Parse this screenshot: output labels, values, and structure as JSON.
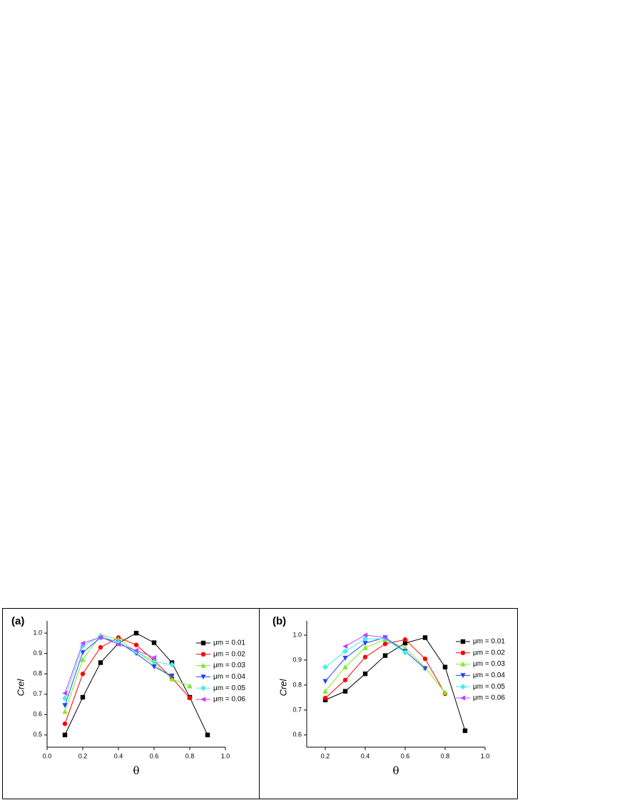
{
  "chart_data": [
    {
      "type": "line",
      "panel_label": "(a)",
      "xlabel": "θ",
      "ylabel": "Crel",
      "xlim": [
        0,
        1
      ],
      "ylim": [
        0.44,
        1.06
      ],
      "xticks": [
        {
          "value": 0,
          "label": "0.0"
        },
        0.2,
        0.4,
        0.6,
        0.8,
        {
          "value": 1,
          "label": "1.0"
        }
      ],
      "yticks": [
        0.5,
        0.6,
        0.7,
        0.8,
        0.9,
        {
          "value": 1,
          "label": "1.0"
        }
      ],
      "series": [
        {
          "name": "μm = 0.01",
          "color": "#000000",
          "marker": "square",
          "x": [
            0.1,
            0.2,
            0.3,
            0.4,
            0.5,
            0.6,
            0.7,
            0.8,
            0.9
          ],
          "values": [
            0.5,
            0.685,
            0.855,
            0.95,
            1.0,
            0.953,
            0.855,
            0.685,
            0.5
          ]
        },
        {
          "name": "μm = 0.02",
          "color": "#ff0000",
          "marker": "circle",
          "x": [
            0.1,
            0.2,
            0.3,
            0.4,
            0.5,
            0.6,
            0.7,
            0.8
          ],
          "values": [
            0.555,
            0.8,
            0.93,
            0.978,
            0.942,
            0.865,
            0.78,
            0.682
          ]
        },
        {
          "name": "μm = 0.03",
          "color": "#77ee22",
          "marker": "triangle-up",
          "x": [
            0.1,
            0.2,
            0.3,
            0.4,
            0.5,
            0.6,
            0.7,
            0.8
          ],
          "values": [
            0.615,
            0.87,
            0.99,
            0.97,
            0.91,
            0.85,
            0.775,
            0.74
          ]
        },
        {
          "name": "μm = 0.04",
          "color": "#2244ff",
          "marker": "triangle-down",
          "x": [
            0.1,
            0.2,
            0.3,
            0.4,
            0.5,
            0.6,
            0.7
          ],
          "values": [
            0.645,
            0.905,
            0.978,
            0.955,
            0.9,
            0.835,
            0.79
          ]
        },
        {
          "name": "μm = 0.05",
          "color": "#44eeee",
          "marker": "diamond",
          "x": [
            0.1,
            0.2,
            0.3,
            0.4,
            0.5,
            0.6,
            0.7
          ],
          "values": [
            0.68,
            0.935,
            0.985,
            0.955,
            0.91,
            0.86,
            0.845
          ]
        },
        {
          "name": "μm = 0.06",
          "color": "#bb44ff",
          "marker": "triangle-left",
          "x": [
            0.1,
            0.2,
            0.3,
            0.4,
            0.5,
            0.6
          ],
          "values": [
            0.705,
            0.95,
            0.98,
            0.945,
            0.915,
            0.88
          ]
        }
      ]
    },
    {
      "type": "line",
      "panel_label": "(b)",
      "xlabel": "θ",
      "ylabel": "Crel",
      "xlim": [
        0.107,
        1
      ],
      "ylim": [
        0.551,
        1.057
      ],
      "xticks": [
        0.2,
        0.4,
        0.6,
        0.8,
        {
          "value": 1,
          "label": "1.0"
        }
      ],
      "yticks": [
        0.6,
        0.7,
        0.8,
        0.9,
        {
          "value": 1,
          "label": "1.0"
        }
      ],
      "series": [
        {
          "name": "μm = 0.01",
          "color": "#000000",
          "marker": "square",
          "x": [
            0.2,
            0.3,
            0.4,
            0.5,
            0.6,
            0.7,
            0.8,
            0.9
          ],
          "values": [
            0.74,
            0.775,
            0.845,
            0.918,
            0.968,
            0.99,
            0.872,
            0.617
          ]
        },
        {
          "name": "μm = 0.02",
          "color": "#ff0000",
          "marker": "circle",
          "x": [
            0.2,
            0.3,
            0.4,
            0.5,
            0.6,
            0.7,
            0.8
          ],
          "values": [
            0.748,
            0.82,
            0.912,
            0.965,
            0.982,
            0.905,
            0.765
          ]
        },
        {
          "name": "μm = 0.03",
          "color": "#77ee22",
          "marker": "triangle-up",
          "x": [
            0.2,
            0.3,
            0.4,
            0.5,
            0.6,
            0.7,
            0.8
          ],
          "values": [
            0.775,
            0.872,
            0.95,
            0.982,
            0.948,
            0.87,
            0.77
          ]
        },
        {
          "name": "μm = 0.04",
          "color": "#2244ff",
          "marker": "triangle-down",
          "x": [
            0.2,
            0.3,
            0.4,
            0.5,
            0.6,
            0.7
          ],
          "values": [
            0.815,
            0.908,
            0.968,
            0.99,
            0.935,
            0.866
          ]
        },
        {
          "name": "μm = 0.05",
          "color": "#44eeee",
          "marker": "diamond",
          "x": [
            0.2,
            0.3,
            0.4,
            0.5,
            0.6
          ],
          "values": [
            0.872,
            0.935,
            0.985,
            0.985,
            0.93
          ]
        },
        {
          "name": "μm = 0.06",
          "color": "#bb44ff",
          "marker": "triangle-left",
          "x": [
            0.3,
            0.4,
            0.5
          ],
          "values": [
            0.955,
            1.0,
            0.99
          ]
        }
      ]
    }
  ]
}
